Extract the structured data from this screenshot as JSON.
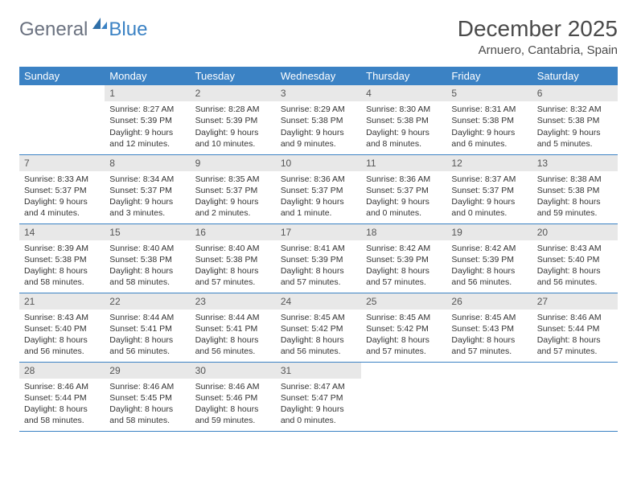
{
  "logo": {
    "general": "General",
    "blue": "Blue"
  },
  "title": "December 2025",
  "location": "Arnuero, Cantabria, Spain",
  "colors": {
    "header_bg": "#3b82c4",
    "header_text": "#ffffff",
    "daynum_bg": "#e8e8e8",
    "border": "#3b82c4",
    "text": "#333333"
  },
  "weekdays": [
    "Sunday",
    "Monday",
    "Tuesday",
    "Wednesday",
    "Thursday",
    "Friday",
    "Saturday"
  ],
  "weeks": [
    [
      null,
      {
        "n": "1",
        "sr": "8:27 AM",
        "ss": "5:39 PM",
        "dl": "9 hours and 12 minutes."
      },
      {
        "n": "2",
        "sr": "8:28 AM",
        "ss": "5:39 PM",
        "dl": "9 hours and 10 minutes."
      },
      {
        "n": "3",
        "sr": "8:29 AM",
        "ss": "5:38 PM",
        "dl": "9 hours and 9 minutes."
      },
      {
        "n": "4",
        "sr": "8:30 AM",
        "ss": "5:38 PM",
        "dl": "9 hours and 8 minutes."
      },
      {
        "n": "5",
        "sr": "8:31 AM",
        "ss": "5:38 PM",
        "dl": "9 hours and 6 minutes."
      },
      {
        "n": "6",
        "sr": "8:32 AM",
        "ss": "5:38 PM",
        "dl": "9 hours and 5 minutes."
      }
    ],
    [
      {
        "n": "7",
        "sr": "8:33 AM",
        "ss": "5:37 PM",
        "dl": "9 hours and 4 minutes."
      },
      {
        "n": "8",
        "sr": "8:34 AM",
        "ss": "5:37 PM",
        "dl": "9 hours and 3 minutes."
      },
      {
        "n": "9",
        "sr": "8:35 AM",
        "ss": "5:37 PM",
        "dl": "9 hours and 2 minutes."
      },
      {
        "n": "10",
        "sr": "8:36 AM",
        "ss": "5:37 PM",
        "dl": "9 hours and 1 minute."
      },
      {
        "n": "11",
        "sr": "8:36 AM",
        "ss": "5:37 PM",
        "dl": "9 hours and 0 minutes."
      },
      {
        "n": "12",
        "sr": "8:37 AM",
        "ss": "5:37 PM",
        "dl": "9 hours and 0 minutes."
      },
      {
        "n": "13",
        "sr": "8:38 AM",
        "ss": "5:38 PM",
        "dl": "8 hours and 59 minutes."
      }
    ],
    [
      {
        "n": "14",
        "sr": "8:39 AM",
        "ss": "5:38 PM",
        "dl": "8 hours and 58 minutes."
      },
      {
        "n": "15",
        "sr": "8:40 AM",
        "ss": "5:38 PM",
        "dl": "8 hours and 58 minutes."
      },
      {
        "n": "16",
        "sr": "8:40 AM",
        "ss": "5:38 PM",
        "dl": "8 hours and 57 minutes."
      },
      {
        "n": "17",
        "sr": "8:41 AM",
        "ss": "5:39 PM",
        "dl": "8 hours and 57 minutes."
      },
      {
        "n": "18",
        "sr": "8:42 AM",
        "ss": "5:39 PM",
        "dl": "8 hours and 57 minutes."
      },
      {
        "n": "19",
        "sr": "8:42 AM",
        "ss": "5:39 PM",
        "dl": "8 hours and 56 minutes."
      },
      {
        "n": "20",
        "sr": "8:43 AM",
        "ss": "5:40 PM",
        "dl": "8 hours and 56 minutes."
      }
    ],
    [
      {
        "n": "21",
        "sr": "8:43 AM",
        "ss": "5:40 PM",
        "dl": "8 hours and 56 minutes."
      },
      {
        "n": "22",
        "sr": "8:44 AM",
        "ss": "5:41 PM",
        "dl": "8 hours and 56 minutes."
      },
      {
        "n": "23",
        "sr": "8:44 AM",
        "ss": "5:41 PM",
        "dl": "8 hours and 56 minutes."
      },
      {
        "n": "24",
        "sr": "8:45 AM",
        "ss": "5:42 PM",
        "dl": "8 hours and 56 minutes."
      },
      {
        "n": "25",
        "sr": "8:45 AM",
        "ss": "5:42 PM",
        "dl": "8 hours and 57 minutes."
      },
      {
        "n": "26",
        "sr": "8:45 AM",
        "ss": "5:43 PM",
        "dl": "8 hours and 57 minutes."
      },
      {
        "n": "27",
        "sr": "8:46 AM",
        "ss": "5:44 PM",
        "dl": "8 hours and 57 minutes."
      }
    ],
    [
      {
        "n": "28",
        "sr": "8:46 AM",
        "ss": "5:44 PM",
        "dl": "8 hours and 58 minutes."
      },
      {
        "n": "29",
        "sr": "8:46 AM",
        "ss": "5:45 PM",
        "dl": "8 hours and 58 minutes."
      },
      {
        "n": "30",
        "sr": "8:46 AM",
        "ss": "5:46 PM",
        "dl": "8 hours and 59 minutes."
      },
      {
        "n": "31",
        "sr": "8:47 AM",
        "ss": "5:47 PM",
        "dl": "9 hours and 0 minutes."
      },
      null,
      null,
      null
    ]
  ],
  "labels": {
    "sunrise": "Sunrise:",
    "sunset": "Sunset:",
    "daylight": "Daylight:"
  }
}
